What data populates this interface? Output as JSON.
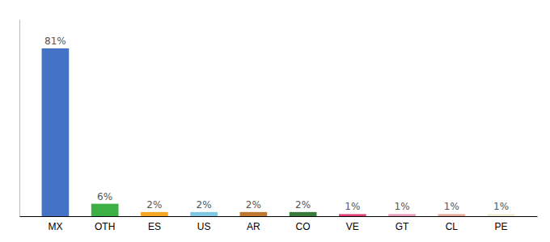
{
  "chart_data": {
    "type": "bar",
    "categories": [
      "MX",
      "OTH",
      "ES",
      "US",
      "AR",
      "CO",
      "VE",
      "GT",
      "CL",
      "PE"
    ],
    "values": [
      81,
      6,
      2,
      2,
      2,
      2,
      1,
      1,
      1,
      1
    ],
    "value_labels": [
      "81%",
      "6%",
      "2%",
      "2%",
      "2%",
      "2%",
      "1%",
      "1%",
      "1%",
      "1%"
    ],
    "colors": [
      "#4472c4",
      "#3cb043",
      "#f5a623",
      "#7ec8e3",
      "#c07830",
      "#3a7a3a",
      "#e0407a",
      "#e898b8",
      "#e8a898",
      "#f0ead0"
    ],
    "ylim": [
      0,
      95
    ],
    "data_labels": true,
    "tick_labels": "x",
    "grid": false
  }
}
